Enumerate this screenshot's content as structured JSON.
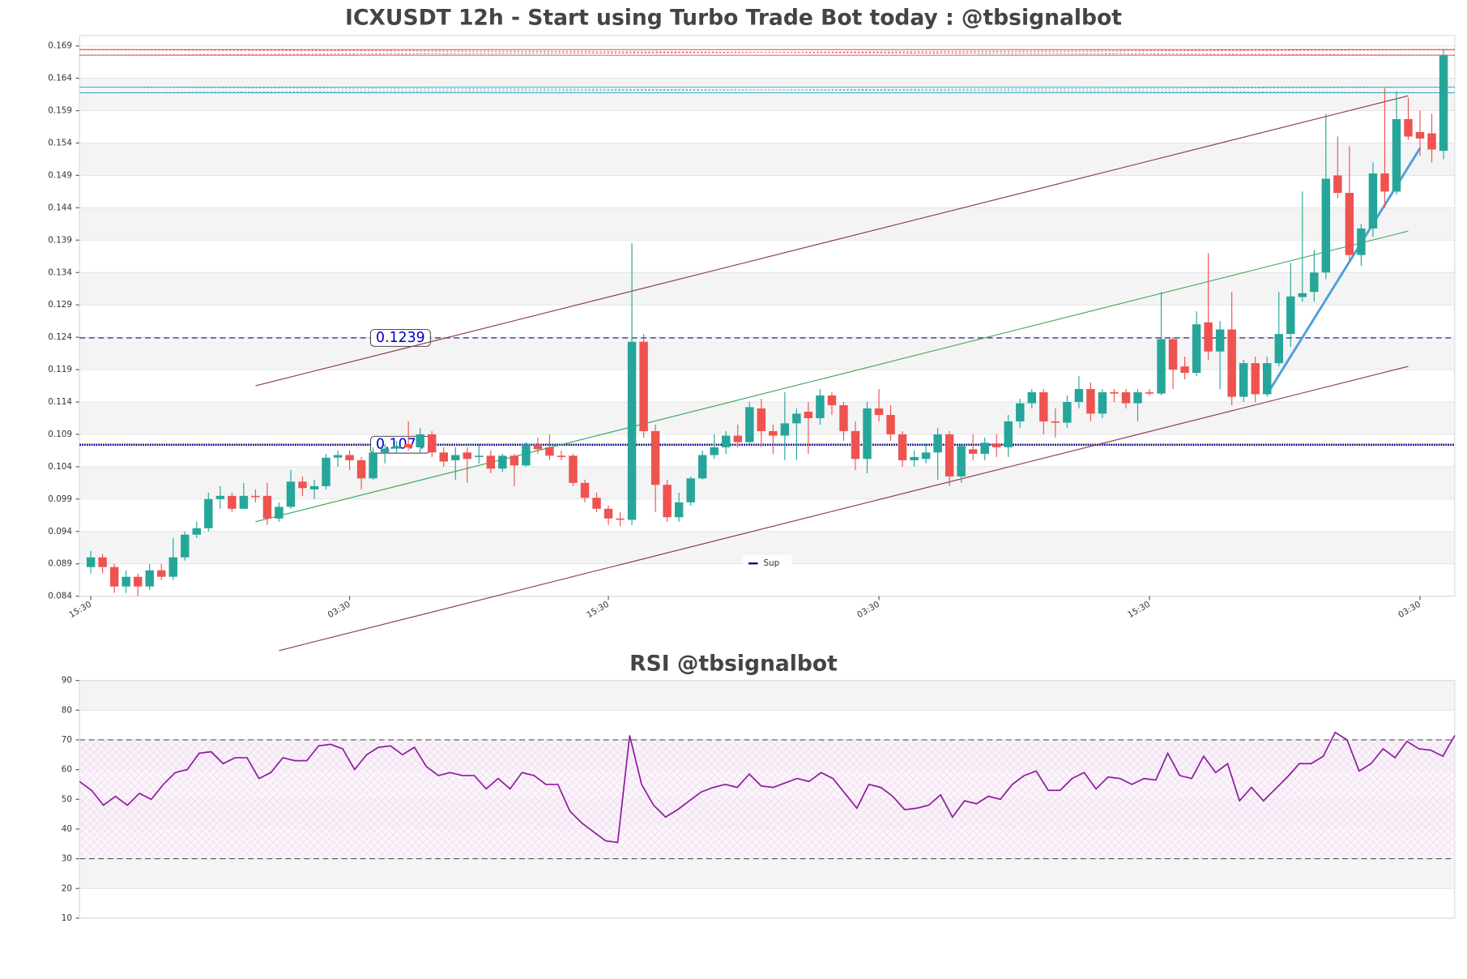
{
  "chart_data": [
    {
      "type": "candlestick",
      "title": "ICXUSDT 12h - Start using Turbo Trade Bot today : @tbsignalbot",
      "categories": [
        "15:30",
        null,
        null,
        null,
        null,
        null,
        null,
        null,
        null,
        null,
        null,
        null,
        null,
        null,
        null,
        null,
        null,
        null,
        null,
        null,
        null,
        null,
        "03:30",
        null,
        null,
        null,
        null,
        null,
        null,
        null,
        null,
        null,
        null,
        null,
        null,
        null,
        null,
        null,
        null,
        null,
        null,
        null,
        null,
        null,
        "15:30",
        null,
        null,
        null,
        null,
        null,
        null,
        null,
        null,
        null,
        null,
        null,
        null,
        null,
        null,
        null,
        null,
        null,
        null,
        null,
        null,
        null,
        null,
        "03:30",
        null,
        null,
        null,
        null,
        null,
        null,
        null,
        null,
        null,
        null,
        null,
        null,
        null,
        null,
        null,
        null,
        null,
        null,
        null,
        null,
        null,
        null,
        "15:30",
        null,
        null,
        null,
        null,
        null,
        null,
        null,
        null,
        null,
        null,
        null,
        null,
        null,
        null,
        null,
        null,
        null,
        null,
        null,
        null,
        null,
        null,
        "03:30",
        null,
        null
      ],
      "open": [
        0.0885,
        0.09,
        0.0885,
        0.0855,
        0.087,
        0.0855,
        0.088,
        0.087,
        0.09,
        0.0935,
        0.0945,
        0.099,
        0.0995,
        0.0975,
        0.0995,
        0.0995,
        0.096,
        0.0978,
        0.1017,
        0.1005,
        0.101,
        0.1054,
        0.1058,
        0.105,
        0.1022,
        0.1062,
        0.1068,
        0.1075,
        0.107,
        0.109,
        0.1062,
        0.105,
        0.1062,
        0.1055,
        0.1057,
        0.1037,
        0.1057,
        0.1042,
        0.1074,
        0.107,
        0.1057,
        0.1057,
        0.1015,
        0.0992,
        0.0975,
        0.096,
        0.0958,
        0.1233,
        0.1095,
        0.1012,
        0.0962,
        0.0985,
        0.1022,
        0.1058,
        0.107,
        0.1088,
        0.1078,
        0.113,
        0.1095,
        0.1088,
        0.1107,
        0.1125,
        0.1115,
        0.115,
        0.1135,
        0.1095,
        0.1052,
        0.113,
        0.112,
        0.109,
        0.105,
        0.1052,
        0.1062,
        0.109,
        0.1025,
        0.1067,
        0.106,
        0.1076,
        0.107,
        0.111,
        0.1138,
        0.1155,
        0.111,
        0.1108,
        0.114,
        0.116,
        0.1122,
        0.1155,
        0.1155,
        0.1138,
        0.1155,
        0.1153,
        0.1237,
        0.1195,
        0.1185,
        0.1263,
        0.1218,
        0.1252,
        0.1148,
        0.12,
        0.1152,
        0.12,
        0.1245,
        0.1302,
        0.131,
        0.134,
        0.149,
        0.1463,
        0.1367,
        0.1408,
        0.1493,
        0.1465,
        0.1577,
        0.1557,
        0.1555,
        0.1528
      ],
      "high": [
        0.091,
        0.0905,
        0.089,
        0.088,
        0.0875,
        0.089,
        0.089,
        0.093,
        0.094,
        0.0955,
        0.1,
        0.101,
        0.1,
        0.1015,
        0.1005,
        0.1015,
        0.0985,
        0.1035,
        0.1025,
        0.102,
        0.106,
        0.1065,
        0.1065,
        0.1055,
        0.107,
        0.1075,
        0.108,
        0.111,
        0.11,
        0.1095,
        0.107,
        0.107,
        0.107,
        0.1075,
        0.1065,
        0.106,
        0.106,
        0.1078,
        0.1085,
        0.109,
        0.1065,
        0.106,
        0.102,
        0.1,
        0.098,
        0.097,
        0.1385,
        0.1245,
        0.1105,
        0.102,
        0.1,
        0.1025,
        0.1065,
        0.109,
        0.1095,
        0.1105,
        0.114,
        0.1145,
        0.1105,
        0.1155,
        0.113,
        0.114,
        0.116,
        0.1155,
        0.114,
        0.111,
        0.114,
        0.116,
        0.1135,
        0.1095,
        0.1065,
        0.1075,
        0.11,
        0.1095,
        0.1075,
        0.109,
        0.1085,
        0.109,
        0.112,
        0.1145,
        0.116,
        0.116,
        0.113,
        0.115,
        0.118,
        0.117,
        0.116,
        0.116,
        0.116,
        0.116,
        0.116,
        0.131,
        0.124,
        0.121,
        0.128,
        0.137,
        0.1265,
        0.131,
        0.1205,
        0.121,
        0.121,
        0.131,
        0.1355,
        0.1465,
        0.1375,
        0.1585,
        0.155,
        0.1535,
        0.1415,
        0.151,
        0.1625,
        0.162,
        0.161,
        0.159,
        0.1585,
        0.1685
      ],
      "low": [
        0.0875,
        0.0875,
        0.0845,
        0.0845,
        0.084,
        0.085,
        0.0865,
        0.0865,
        0.0895,
        0.093,
        0.094,
        0.0975,
        0.097,
        0.0975,
        0.0985,
        0.095,
        0.0955,
        0.0975,
        0.0995,
        0.099,
        0.1005,
        0.104,
        0.1035,
        0.1005,
        0.102,
        0.1045,
        0.106,
        0.1065,
        0.106,
        0.1055,
        0.104,
        0.102,
        0.1015,
        0.1045,
        0.103,
        0.1032,
        0.101,
        0.104,
        0.106,
        0.105,
        0.105,
        0.101,
        0.0985,
        0.097,
        0.095,
        0.0948,
        0.095,
        0.1085,
        0.097,
        0.0955,
        0.0955,
        0.098,
        0.102,
        0.1052,
        0.106,
        0.107,
        0.1075,
        0.107,
        0.106,
        0.105,
        0.105,
        0.106,
        0.1105,
        0.112,
        0.108,
        0.1035,
        0.103,
        0.111,
        0.108,
        0.104,
        0.104,
        0.1045,
        0.102,
        0.101,
        0.1015,
        0.105,
        0.105,
        0.1055,
        0.1055,
        0.11,
        0.113,
        0.109,
        0.1085,
        0.11,
        0.113,
        0.111,
        0.1115,
        0.114,
        0.113,
        0.111,
        0.115,
        0.115,
        0.116,
        0.1175,
        0.118,
        0.1205,
        0.116,
        0.1135,
        0.114,
        0.114,
        0.1148,
        0.1195,
        0.1225,
        0.1295,
        0.1295,
        0.133,
        0.1455,
        0.1357,
        0.135,
        0.1395,
        0.144,
        0.146,
        0.1545,
        0.152,
        0.151,
        0.1515
      ],
      "close": [
        0.09,
        0.0885,
        0.0855,
        0.087,
        0.0855,
        0.088,
        0.087,
        0.09,
        0.0935,
        0.0945,
        0.099,
        0.0995,
        0.0975,
        0.0995,
        0.0993,
        0.096,
        0.0978,
        0.1017,
        0.1007,
        0.101,
        0.1054,
        0.1058,
        0.105,
        0.1022,
        0.1062,
        0.1068,
        0.1072,
        0.107,
        0.109,
        0.1062,
        0.1048,
        0.1058,
        0.1052,
        0.1057,
        0.1037,
        0.1057,
        0.1042,
        0.1074,
        0.1067,
        0.1057,
        0.1055,
        0.1015,
        0.0992,
        0.0975,
        0.096,
        0.0958,
        0.1233,
        0.1095,
        0.1012,
        0.0962,
        0.0985,
        0.1022,
        0.1058,
        0.107,
        0.1088,
        0.1078,
        0.1132,
        0.1095,
        0.1088,
        0.1107,
        0.1122,
        0.1115,
        0.115,
        0.1135,
        0.1095,
        0.1052,
        0.113,
        0.112,
        0.109,
        0.105,
        0.1055,
        0.1062,
        0.109,
        0.1025,
        0.1072,
        0.106,
        0.1077,
        0.107,
        0.111,
        0.1138,
        0.1155,
        0.111,
        0.1108,
        0.114,
        0.116,
        0.1122,
        0.1155,
        0.1153,
        0.1138,
        0.1155,
        0.1153,
        0.1237,
        0.119,
        0.1185,
        0.126,
        0.1218,
        0.1252,
        0.1148,
        0.12,
        0.1152,
        0.12,
        0.1245,
        0.1303,
        0.1308,
        0.134,
        0.1485,
        0.1463,
        0.1367,
        0.1408,
        0.1493,
        0.1465,
        0.1577,
        0.155,
        0.1547,
        0.153,
        0.1675
      ],
      "up_color": "#26a69a",
      "down_color": "#ef5350",
      "ylim": [
        0.084,
        0.1706
      ],
      "yticks": [
        0.084,
        0.089,
        0.094,
        0.099,
        0.104,
        0.109,
        0.114,
        0.119,
        0.124,
        0.129,
        0.134,
        0.139,
        0.144,
        0.149,
        0.154,
        0.159,
        0.164,
        0.169
      ],
      "grid": true,
      "levels": [
        {
          "value": 0.168,
          "color": "#d62728",
          "style": "x-dotted"
        },
        {
          "value": 0.1622,
          "color": "#17a2c8",
          "style": "x-dotted"
        },
        {
          "value": 0.1239,
          "color": "#3a3a9a",
          "style": "dashed",
          "labeled": true
        },
        {
          "value": 0.1074,
          "color": "#00008b",
          "style": "dotted",
          "labeled": true,
          "name": "Sup"
        }
      ],
      "trendlines": [
        {
          "x": [
            14,
            112
          ],
          "y": [
            0.1165,
            0.1613
          ],
          "color": "#8c3b50",
          "width": 1
        },
        {
          "x": [
            16,
            112
          ],
          "y": [
            0.0756,
            0.1195
          ],
          "color": "#8c3b50",
          "width": 1
        },
        {
          "x": [
            14,
            112
          ],
          "y": [
            0.0955,
            0.1404
          ],
          "color": "#3daa5c",
          "width": 1
        },
        {
          "x": [
            100,
            113
          ],
          "y": [
            0.1152,
            0.1532
          ],
          "color": "#4a9fe0",
          "width": 2.5
        }
      ],
      "legend": "lower center"
    },
    {
      "type": "line",
      "title": "RSI @tbsignalbot",
      "color": "#8e1f9e",
      "values": [
        56,
        53,
        48,
        51,
        48,
        52,
        50,
        55,
        59,
        60,
        65.5,
        66,
        62,
        64,
        64,
        57,
        59,
        64,
        63,
        63,
        68,
        68.5,
        67,
        60,
        65,
        67.5,
        68,
        65,
        67.5,
        61,
        58,
        59,
        58,
        58,
        53.5,
        57,
        53.5,
        59,
        58,
        55,
        55,
        46,
        42,
        39,
        36,
        35.5,
        71.5,
        55,
        48,
        44,
        46.5,
        49.5,
        52.5,
        54,
        55,
        54,
        58.5,
        54.5,
        54,
        55.5,
        57,
        56,
        59,
        57,
        52,
        47,
        55,
        54,
        51,
        46.5,
        47,
        48,
        51.5,
        44,
        49.5,
        48.5,
        51,
        50,
        55,
        58,
        59.5,
        53,
        53,
        57,
        59,
        53.5,
        57.5,
        57,
        55,
        57,
        56.5,
        65.5,
        58,
        57,
        64.5,
        59,
        62,
        49.5,
        54,
        49.5,
        53.5,
        57.5,
        62,
        62,
        64.5,
        72.5,
        70,
        59.5,
        62,
        67,
        64,
        69.5,
        67,
        66.5,
        64.5,
        71.5
      ],
      "ylim": [
        10,
        90
      ],
      "yticks": [
        10,
        20,
        30,
        40,
        50,
        60,
        70,
        80,
        90
      ],
      "grid": true,
      "hlines": [
        30,
        70
      ],
      "band": [
        30,
        70
      ]
    }
  ]
}
